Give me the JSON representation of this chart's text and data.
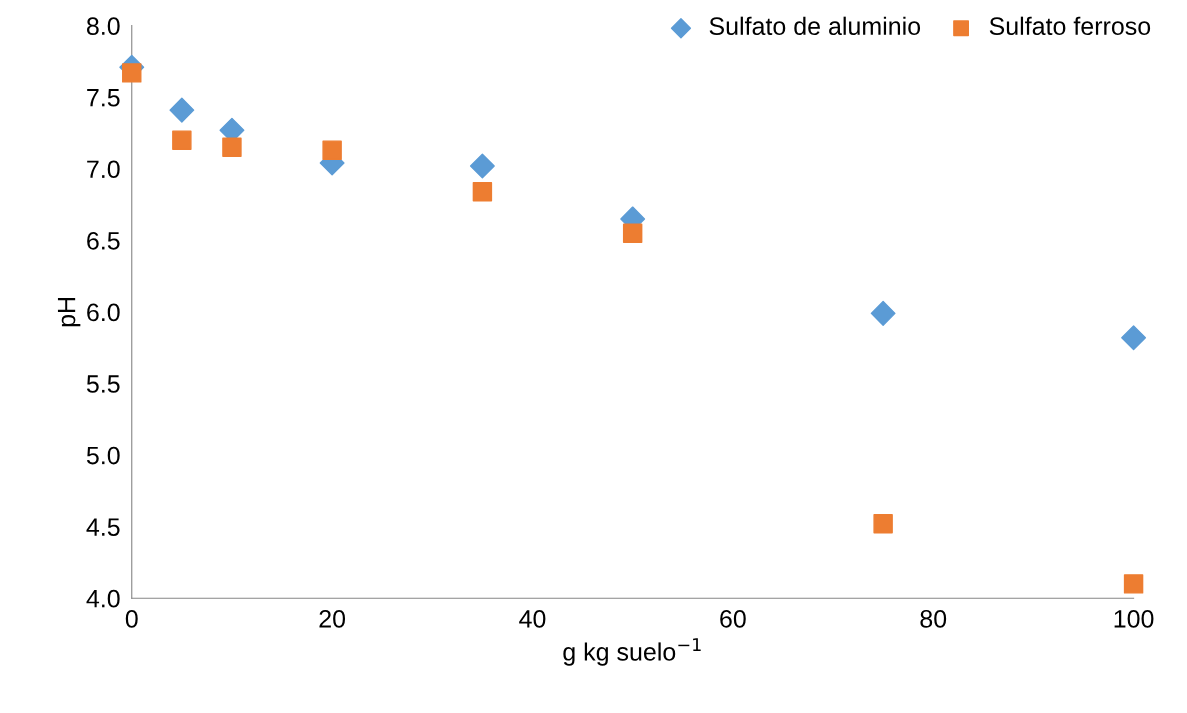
{
  "chart_data": {
    "type": "scatter",
    "xlabel": "g kg suelo$^{−1}$",
    "ylabel": "pH",
    "xlim": [
      0,
      100
    ],
    "xticks": [
      0,
      20,
      40,
      60,
      80,
      100
    ],
    "ylim": [
      4,
      8
    ],
    "yticks": [
      {
        "value": 4,
        "label": "4.0"
      },
      {
        "value": 4.5,
        "label": "4.5"
      },
      {
        "value": 5,
        "label": "5.0"
      },
      {
        "value": 5.5,
        "label": "5.5"
      },
      {
        "value": 6,
        "label": "6.0"
      },
      {
        "value": 6.5,
        "label": "6.5"
      },
      {
        "value": 7,
        "label": "7.0"
      },
      {
        "value": 7.5,
        "label": "7.5"
      },
      {
        "value": 8,
        "label": "8.0"
      }
    ],
    "grid": false,
    "legend": "top right",
    "x": [
      0,
      5,
      10,
      20,
      35,
      50,
      75,
      100
    ],
    "series": [
      {
        "name": "Sulfato de aluminio",
        "color": "#5b9bd5",
        "marker": "diamond",
        "values": [
          7.71,
          7.41,
          7.27,
          7.04,
          7.02,
          6.65,
          5.99,
          5.82
        ]
      },
      {
        "name": "Sulfato ferroso",
        "color": "#ed7d31",
        "marker": "square",
        "values": [
          7.67,
          7.2,
          7.15,
          7.13,
          6.84,
          6.55,
          4.52,
          4.1
        ]
      }
    ]
  }
}
